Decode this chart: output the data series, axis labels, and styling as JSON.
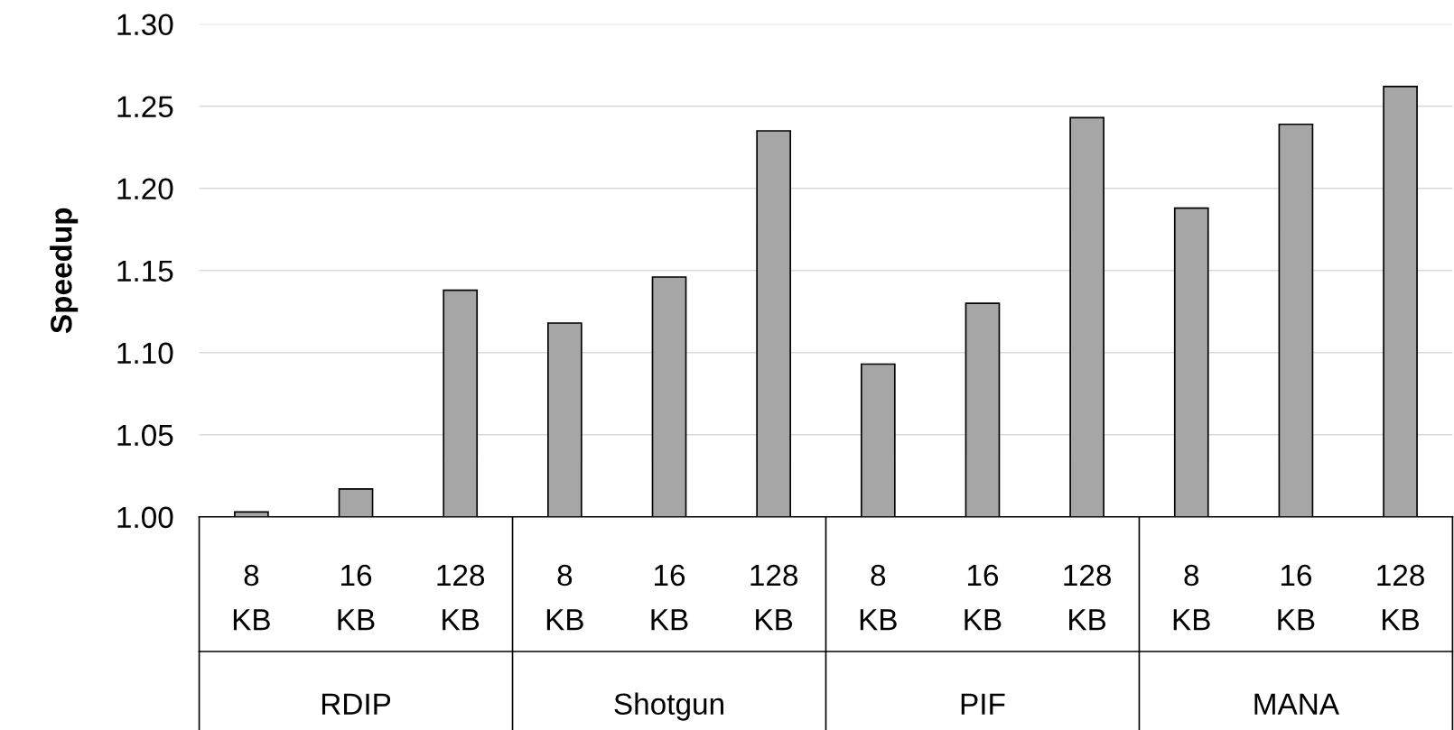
{
  "chart_data": {
    "type": "bar",
    "ylabel": "Speedup",
    "categories": [
      "8 KB",
      "16 KB",
      "128 KB",
      "8 KB",
      "16 KB",
      "128 KB",
      "8 KB",
      "16 KB",
      "128 KB",
      "8 KB",
      "16 KB",
      "128 KB"
    ],
    "values": [
      1.003,
      1.017,
      1.138,
      1.118,
      1.146,
      1.235,
      1.093,
      1.13,
      1.243,
      1.188,
      1.239,
      1.262
    ],
    "color": "#a6a6a6",
    "annotations": [
      "RDIP",
      "Shotgun",
      "PIF",
      "MANA"
    ],
    "ylim": [
      1.0,
      1.3
    ],
    "yticks": [
      {
        "value": 1.0,
        "label": "1.00"
      },
      {
        "value": 1.05,
        "label": "1.05"
      },
      {
        "value": 1.1,
        "label": "1.10"
      },
      {
        "value": 1.15,
        "label": "1.15"
      },
      {
        "value": 1.2,
        "label": "1.20"
      },
      {
        "value": 1.25,
        "label": "1.25"
      },
      {
        "value": 1.3,
        "label": "1.30"
      }
    ],
    "grid": "y"
  }
}
